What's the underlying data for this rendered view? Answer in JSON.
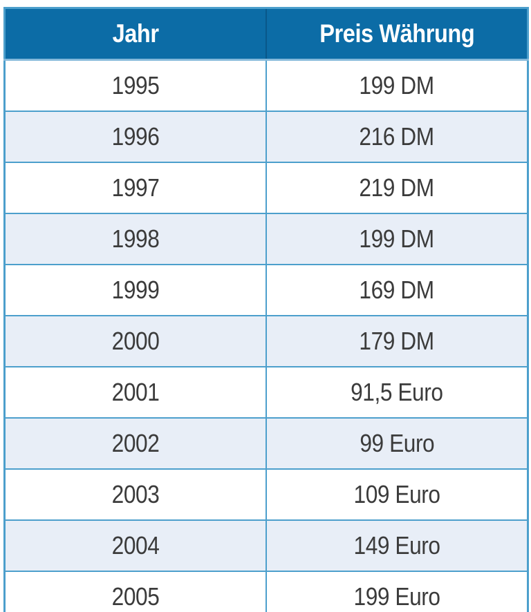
{
  "table": {
    "columns": [
      {
        "key": "jahr",
        "label": "Jahr"
      },
      {
        "key": "preis",
        "label": "Preis Währung"
      }
    ],
    "rows": [
      [
        "1995",
        "199 DM"
      ],
      [
        "1996",
        "216 DM"
      ],
      [
        "1997",
        "219 DM"
      ],
      [
        "1998",
        "199 DM"
      ],
      [
        "1999",
        "169 DM"
      ],
      [
        "2000",
        "179 DM"
      ],
      [
        "2001",
        "91,5 Euro"
      ],
      [
        "2002",
        "99 Euro"
      ],
      [
        "2003",
        "109 Euro"
      ],
      [
        "2004",
        "149 Euro"
      ],
      [
        "2005",
        "199 Euro"
      ]
    ]
  },
  "chart_data": {
    "type": "table",
    "title": "",
    "columns": [
      "Jahr",
      "Preis Währung"
    ],
    "categories": [
      "1995",
      "1996",
      "1997",
      "1998",
      "1999",
      "2000",
      "2001",
      "2002",
      "2003",
      "2004",
      "2005"
    ],
    "values": [
      199,
      216,
      219,
      199,
      169,
      179,
      91.5,
      99,
      109,
      149,
      199
    ],
    "units": [
      "DM",
      "DM",
      "DM",
      "DM",
      "DM",
      "DM",
      "Euro",
      "Euro",
      "Euro",
      "Euro",
      "Euro"
    ],
    "legend": "none",
    "grid": "on"
  },
  "colors": {
    "page_bg": "#FFFFFF",
    "header_bg": "#0C6CA6",
    "header_text": "#FFFFFF",
    "header_divider": "#09578A",
    "header_underline": "#85B9DA",
    "border": "#4C9FCC",
    "row_bg": "#FFFFFF",
    "row_alt_bg": "#E8EEF7",
    "body_text": "#3B3B3B"
  }
}
